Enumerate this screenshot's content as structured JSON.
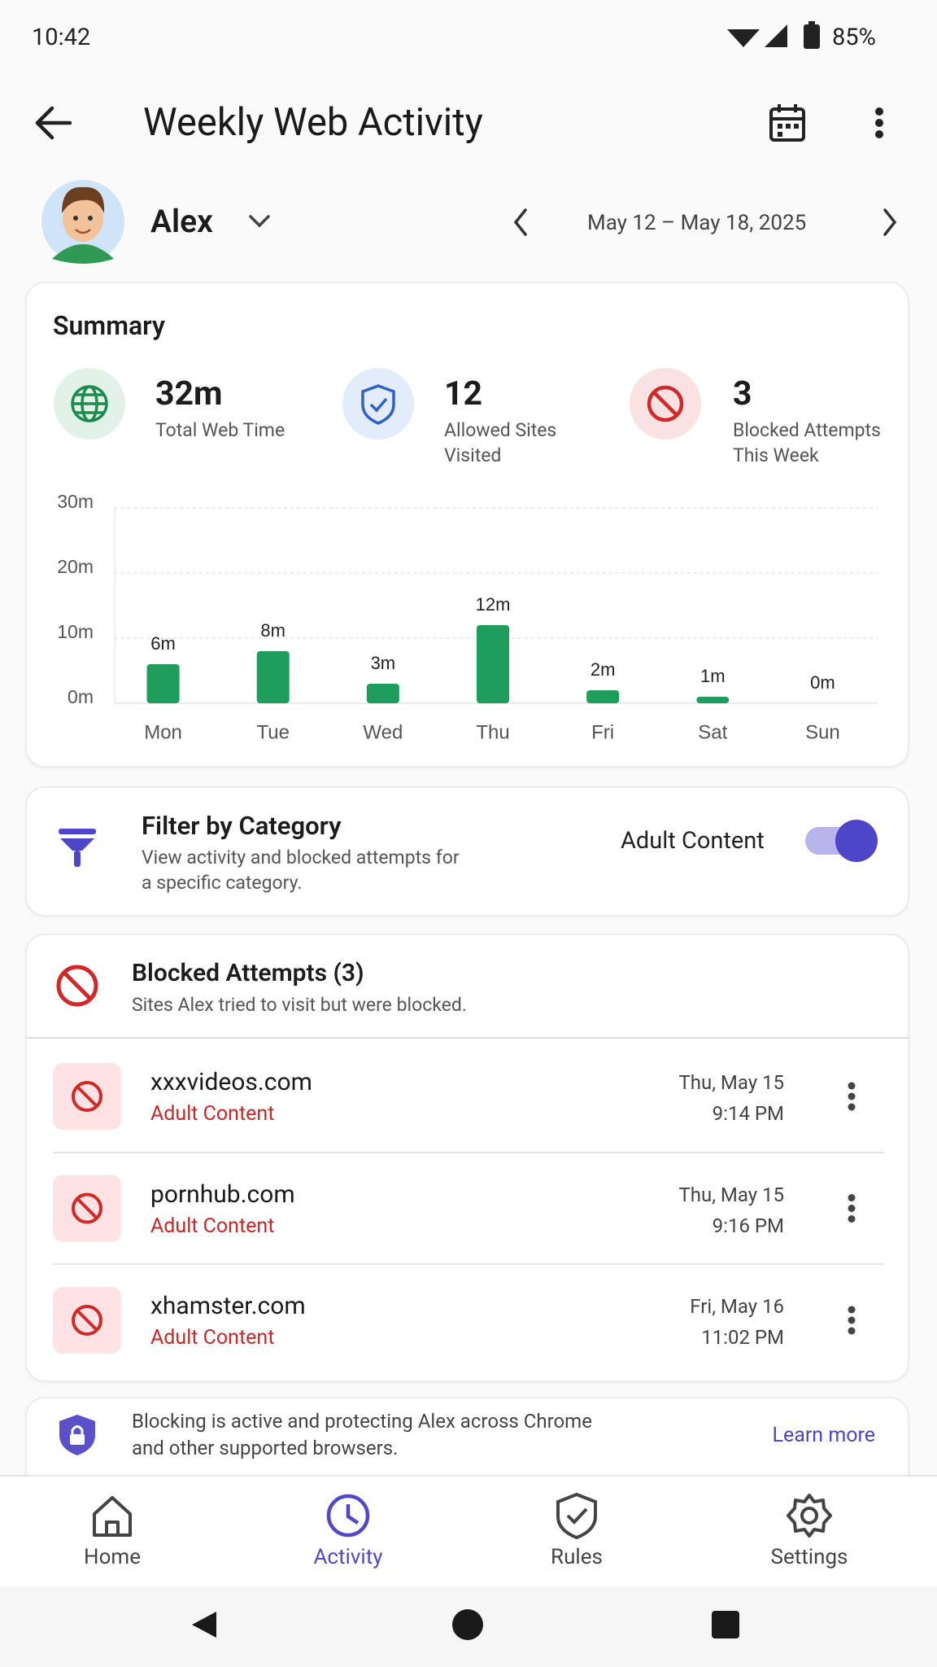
{
  "status_bar": {
    "time": "10:42",
    "battery": "85%"
  },
  "header": {
    "title": "Weekly Web Activity"
  },
  "profile": {
    "name": "Alex",
    "date_range": "May 12 – May 18, 2025"
  },
  "summary": {
    "title": "Summary",
    "stats": [
      {
        "value": "32m",
        "label": "Total Web Time"
      },
      {
        "value": "12",
        "label": "Allowed Sites Visited"
      },
      {
        "value": "3",
        "label": "Blocked Attempts This Week"
      }
    ]
  },
  "chart_data": {
    "type": "bar",
    "categories": [
      "Mon",
      "Tue",
      "Wed",
      "Thu",
      "Fri",
      "Sat",
      "Sun"
    ],
    "values": [
      6,
      8,
      3,
      12,
      2,
      1,
      0
    ],
    "value_labels": [
      "6m",
      "8m",
      "3m",
      "12m",
      "2m",
      "1m",
      "0m"
    ],
    "color": "#1e9e5c",
    "ylim": [
      0,
      30
    ],
    "yticks": [
      {
        "value": 0,
        "label": "0m"
      },
      {
        "value": 10,
        "label": "10m"
      },
      {
        "value": 20,
        "label": "20m"
      },
      {
        "value": 30,
        "label": "30m"
      }
    ],
    "grid": true
  },
  "filter": {
    "title": "Filter by Category",
    "description": "View activity and blocked attempts for a specific category.",
    "category": "Adult Content"
  },
  "blocked": {
    "title": "Blocked Attempts (3)",
    "subtitle": "Sites Alex tried to visit but were blocked.",
    "rows": [
      {
        "site": "xxxvideos.com",
        "category": "Adult Content",
        "date": "Thu, May 15",
        "time": "9:14 PM"
      },
      {
        "site": "pornhub.com",
        "category": "Adult Content",
        "date": "Thu, May 15",
        "time": "9:16 PM"
      },
      {
        "site": "xhamster.com",
        "category": "Adult Content",
        "date": "Fri, May 16",
        "time": "11:02 PM"
      }
    ]
  },
  "info": {
    "text": "Blocking is active and protecting Alex across Chrome and other supported browsers.",
    "link": "Learn more"
  },
  "nav": {
    "items": [
      "Home",
      "Activity",
      "Rules",
      "Settings"
    ]
  }
}
